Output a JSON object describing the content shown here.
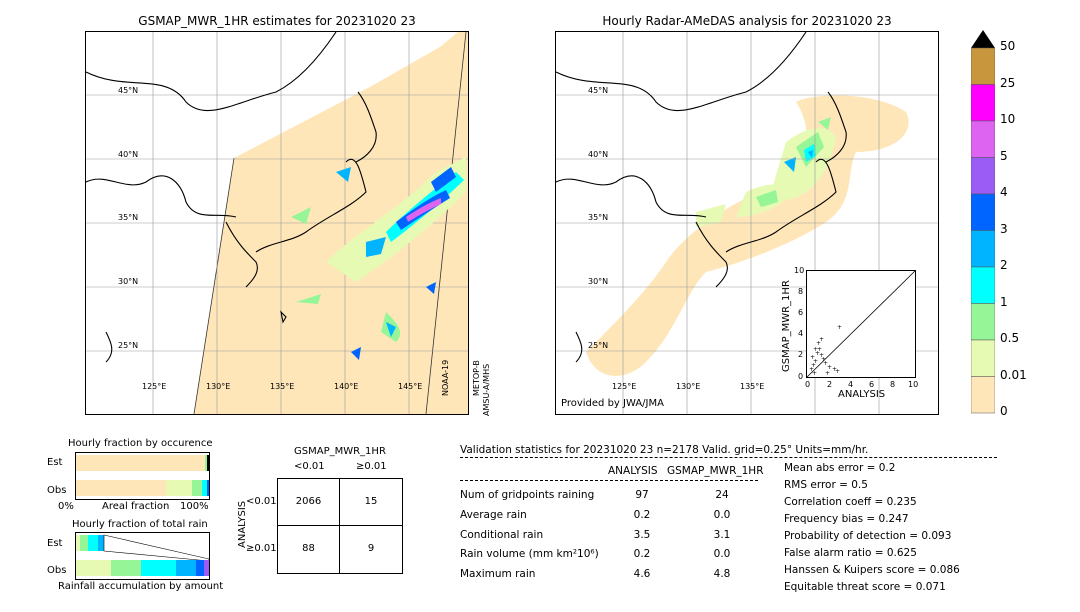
{
  "left_map": {
    "title": "GSMAP_MWR_1HR estimates for 20231020 23",
    "lat_labels": [
      "45°N",
      "40°N",
      "35°N",
      "30°N",
      "25°N"
    ],
    "lon_labels": [
      "125°E",
      "130°E",
      "135°E",
      "140°E",
      "145°E"
    ],
    "side_label_1": "NOAA-19",
    "side_label_2": "METOP-B",
    "side_label_3": "AMSU-A/MHS"
  },
  "right_map": {
    "title": "Hourly Radar-AMeDAS analysis for 20231020 23",
    "lat_labels": [
      "45°N",
      "40°N",
      "35°N",
      "30°N",
      "25°N"
    ],
    "lon_labels": [
      "125°E",
      "130°E",
      "135°E"
    ],
    "credit": "Provided by JWA/JMA",
    "scatter": {
      "xlabel": "ANALYSIS",
      "ylabel": "GSMAP_MWR_1HR",
      "ticks": [
        "0",
        "2",
        "4",
        "6",
        "8",
        "10"
      ]
    }
  },
  "colorbar": {
    "labels": [
      "50",
      "25",
      "10",
      "5",
      "4",
      "3",
      "2",
      "1",
      "0.5",
      "0.01",
      "0"
    ],
    "colors": [
      "#c8963c",
      "#ff00ff",
      "#dc64f0",
      "#9b5cf5",
      "#0064ff",
      "#00b4ff",
      "#00ffff",
      "#96f596",
      "#e6fab4",
      "#ffe6b9"
    ]
  },
  "fraction_occurrence": {
    "title": "Hourly fraction by occurence",
    "row1": "Est",
    "row2": "Obs",
    "axis_left": "0%",
    "axis_mid": "Areal fraction",
    "axis_right": "100%"
  },
  "fraction_total": {
    "title": "Hourly fraction of total rain",
    "row1": "Est",
    "row2": "Obs",
    "axis_mid": "Rainfall accumulation by amount"
  },
  "contingency": {
    "title": "GSMAP_MWR_1HR",
    "col1": "<0.01",
    "col2": "≥0.01",
    "ylabel": "ANALYSIS",
    "row1": "<0.01",
    "row2": "≥0.01",
    "cells": [
      "2066",
      "15",
      "88",
      "9"
    ]
  },
  "validation": {
    "header": "Validation statistics for 20231020 23  n=2178 Valid. grid=0.25° Units=mm/hr.",
    "col_analysis": "ANALYSIS",
    "col_gsmap": "GSMAP_MWR_1HR",
    "rows": [
      {
        "label": "Num of gridpoints raining",
        "a": "97",
        "g": "24"
      },
      {
        "label": "Average rain",
        "a": "0.2",
        "g": "0.0"
      },
      {
        "label": "Conditional rain",
        "a": "3.5",
        "g": "3.1"
      },
      {
        "label": "Rain volume (mm km²10⁶)",
        "a": "0.2",
        "g": "0.0"
      },
      {
        "label": "Maximum rain",
        "a": "4.6",
        "g": "4.8"
      }
    ],
    "scores": [
      "Mean abs error =    0.2",
      "RMS error =    0.5",
      "Correlation coeff =  0.235",
      "Frequency bias =  0.247",
      "Probability of detection =  0.093",
      "False alarm ratio =  0.625",
      "Hanssen & Kuipers score =  0.086",
      "Equitable threat score =  0.071"
    ]
  }
}
